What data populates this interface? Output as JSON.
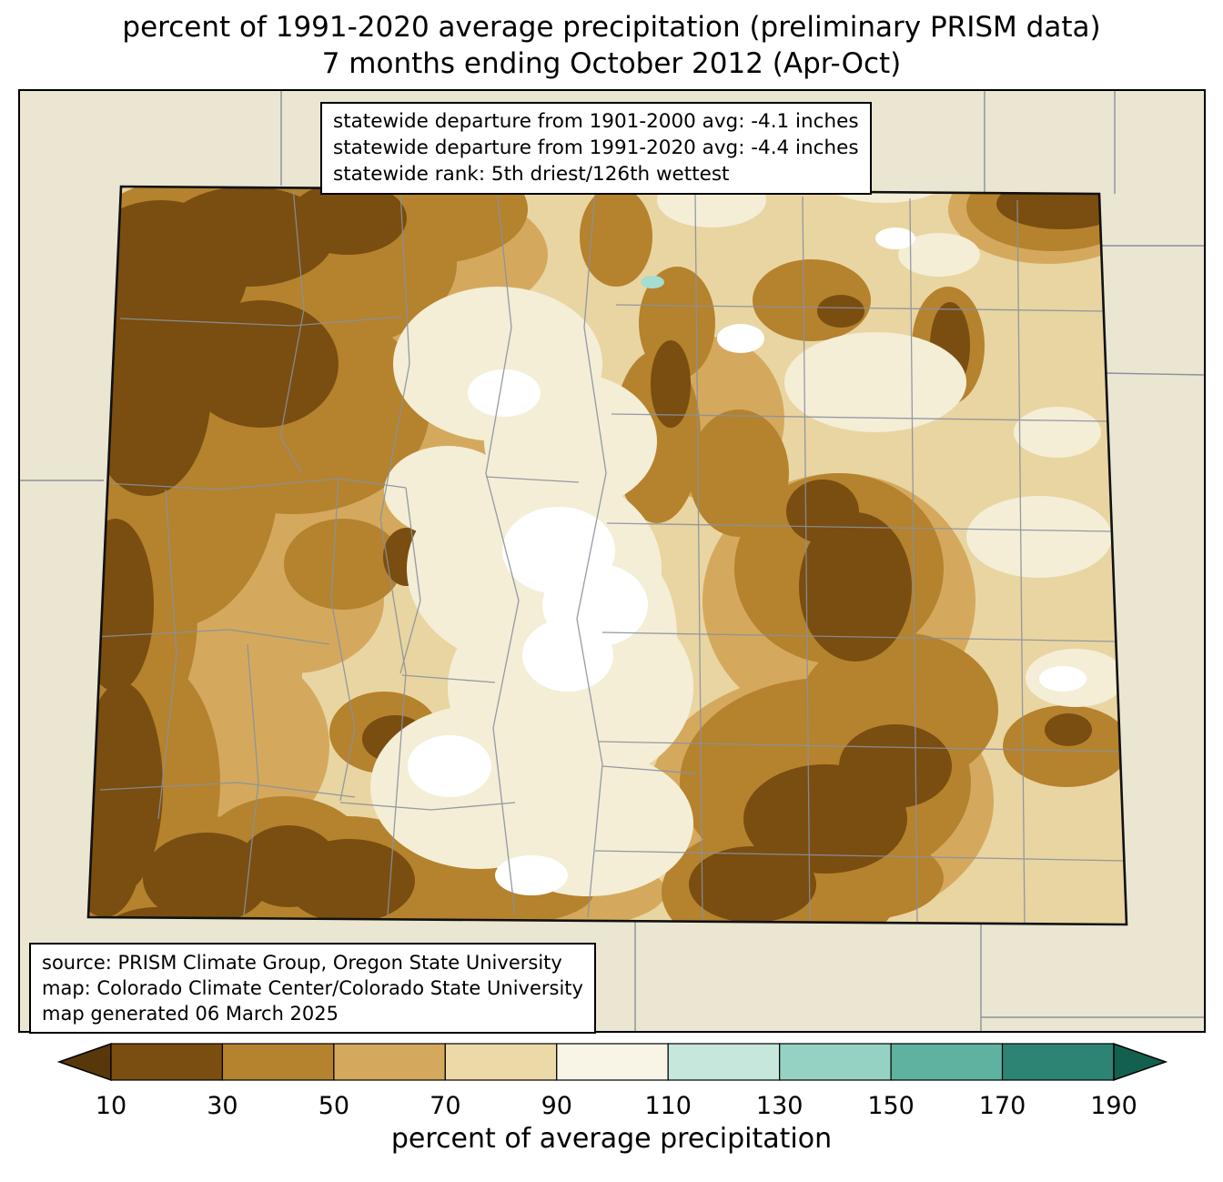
{
  "title": {
    "line1": "percent of 1991-2020 average precipitation (preliminary PRISM data)",
    "line2": "7 months ending October 2012 (Apr-Oct)"
  },
  "stats_box": {
    "lines": [
      "statewide departure from 1901-2000 avg: -4.1 inches",
      "statewide departure from 1991-2020 avg: -4.4 inches",
      "statewide rank: 5th driest/126th wettest"
    ]
  },
  "source_box": {
    "lines": [
      "source: PRISM Climate Group, Oregon State University",
      "map: Colorado Climate Center/Colorado State University",
      "map generated 06 March 2025"
    ]
  },
  "colorbar": {
    "label": "percent of average precipitation",
    "ticks": [
      "10",
      "30",
      "50",
      "70",
      "90",
      "110",
      "130",
      "150",
      "170",
      "190"
    ],
    "segment_colors": [
      "#7a4d10",
      "#b5822e",
      "#d4a95e",
      "#ecd9a8",
      "#f8f4e6",
      "#c5e7dc",
      "#96d2c3",
      "#5fb1a0",
      "#2e8474"
    ],
    "arrow_left_color": "#57380b",
    "arrow_right_color": "#14604f"
  },
  "map": {
    "region": "Colorado",
    "legend_ranges": [
      {
        "range": "<10",
        "color": "#57380b"
      },
      {
        "range": "10-30",
        "color": "#7a4d10"
      },
      {
        "range": "30-50",
        "color": "#b5822e"
      },
      {
        "range": "50-70",
        "color": "#d4a95e"
      },
      {
        "range": "70-90",
        "color": "#ecd9a8"
      },
      {
        "range": "90-110",
        "color": "#f8f4e6"
      },
      {
        "range": "110-130",
        "color": "#c5e7dc"
      },
      {
        "range": "130-150",
        "color": "#96d2c3"
      },
      {
        "range": "150-170",
        "color": "#5fb1a0"
      },
      {
        "range": "170-190",
        "color": "#2e8474"
      },
      {
        "range": ">190",
        "color": "#14604f"
      }
    ],
    "palette": {
      "bg": "#eae6d2",
      "line": "#8b909b",
      "d1030": "#7a4d10",
      "m3050": "#b5822e",
      "t5070": "#d4a95e",
      "base7090": "#e9d5a2",
      "cream90110": "#f4eed7",
      "white110": "#ffffff",
      "cyan": "#a7dcd0"
    }
  }
}
